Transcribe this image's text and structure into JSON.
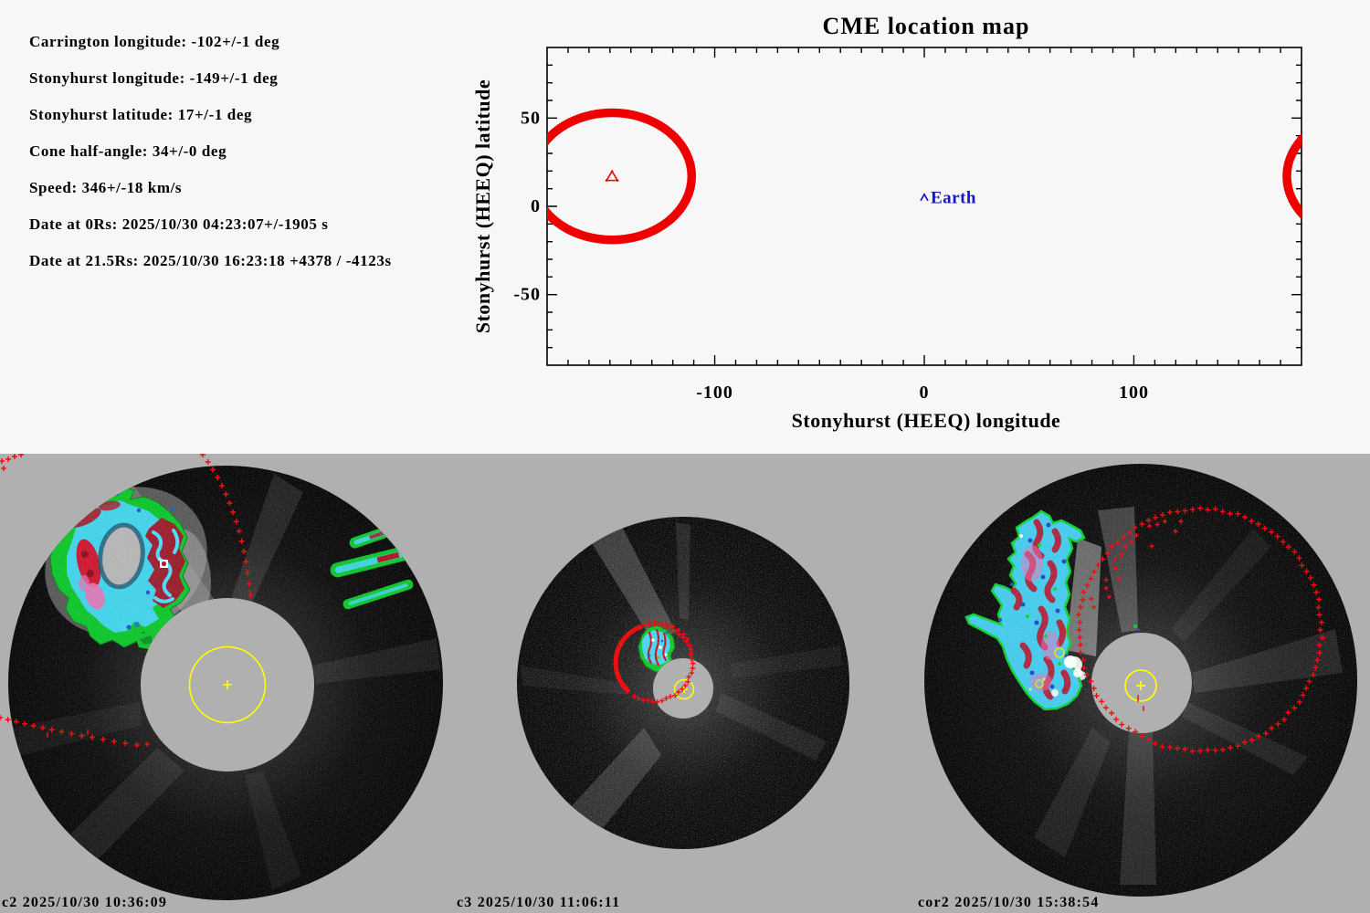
{
  "colors": {
    "top_bg": "#f7f7f7",
    "bottom_bg": "#b0b0b0",
    "overlay_red": "#ee0000",
    "earth_blue": "#1515cc",
    "overlay_yellow": "#ffff00",
    "contour_green": "#0cc32a",
    "contour_cyan": "#44d2f2",
    "contour_red": "#b5152b"
  },
  "params_panel": {
    "lines": [
      "Carrington longitude: -102+/-1 deg",
      "Stonyhurst longitude: -149+/-1 deg",
      "Stonyhurst latitude: 17+/-1 deg",
      "Cone half-angle: 34+/-0 deg",
      "Speed: 346+/-18 km/s",
      "Date at 0Rs: 2025/10/30 04:23:07+/-1905 s",
      "Date at 21.5Rs: 2025/10/30 16:23:18 +4378 / -4123s"
    ]
  },
  "chart_data": {
    "type": "scatter",
    "title": "CME location map",
    "xlabel": "Stonyhurst (HEEQ) longitude",
    "ylabel": "Stonyhurst (HEEQ) latitude",
    "xlim": [
      -180,
      180
    ],
    "ylim": [
      -90,
      90
    ],
    "grid": false,
    "minor_tick_step_deg": 10,
    "x_tick_labels": [
      {
        "value": -100,
        "label": "-100"
      },
      {
        "value": 0,
        "label": "0"
      },
      {
        "value": 100,
        "label": "100"
      }
    ],
    "y_tick_labels": [
      {
        "value": 50,
        "label": "50"
      },
      {
        "value": 0,
        "label": "0"
      },
      {
        "value": -50,
        "label": "-50"
      }
    ],
    "series": [
      {
        "name": "CME cone boundary",
        "marker": "thick-red-ellipse",
        "center": {
          "longitude_deg": -149,
          "latitude_deg": 17
        },
        "cone_half_angle_deg": 34,
        "projected_rx_deg": 38,
        "projected_ry_deg": 36,
        "wraps_at_180": true
      },
      {
        "name": "CME center",
        "marker": "red-open-triangle",
        "points": [
          {
            "longitude_deg": -149,
            "latitude_deg": 17
          }
        ]
      },
      {
        "name": "Earth",
        "marker": "blue-caret",
        "label": "Earth",
        "points": [
          {
            "longitude_deg": 0,
            "latitude_deg": 5
          }
        ]
      }
    ]
  },
  "coronagraphs": [
    {
      "id": "c2",
      "label": "c2 2025/10/30 10:36:09"
    },
    {
      "id": "c3",
      "label": "c3 2025/10/30 11:06:11"
    },
    {
      "id": "cor2",
      "label": "cor2 2025/10/30 15:38:54"
    }
  ]
}
